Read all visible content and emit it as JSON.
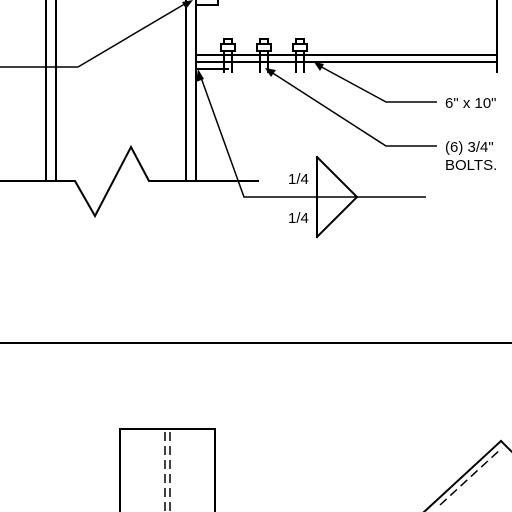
{
  "callouts": {
    "plate_label": "6\" x 10\"",
    "bolts_label_line1": "(6) 3/4\" ",
    "bolts_label_line2": "BOLTS."
  },
  "weld_symbol": {
    "top_size": "1/4",
    "bottom_size": "1/4"
  },
  "colors": {
    "line": "#000000",
    "background": "#ffffff"
  }
}
